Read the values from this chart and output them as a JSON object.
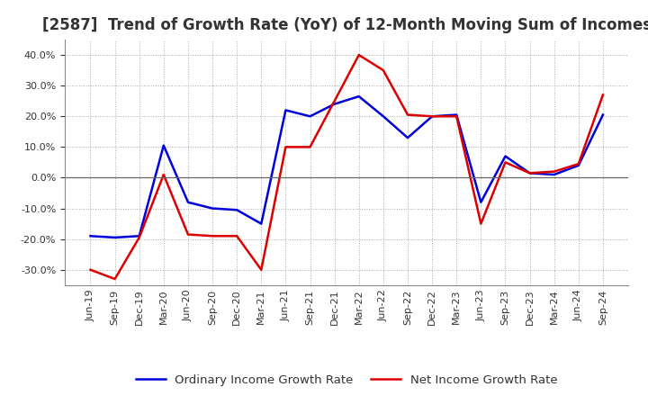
{
  "title": "[2587]  Trend of Growth Rate (YoY) of 12-Month Moving Sum of Incomes",
  "x_labels": [
    "Jun-19",
    "Sep-19",
    "Dec-19",
    "Mar-20",
    "Jun-20",
    "Sep-20",
    "Dec-20",
    "Mar-21",
    "Jun-21",
    "Sep-21",
    "Dec-21",
    "Mar-22",
    "Jun-22",
    "Sep-22",
    "Dec-22",
    "Mar-23",
    "Jun-23",
    "Sep-23",
    "Dec-23",
    "Mar-24",
    "Jun-24",
    "Sep-24"
  ],
  "ordinary_income": [
    -19.0,
    -19.5,
    -19.0,
    10.5,
    -8.0,
    -10.0,
    -10.5,
    -15.0,
    22.0,
    20.0,
    24.0,
    26.5,
    20.0,
    13.0,
    20.0,
    20.5,
    -8.0,
    7.0,
    1.5,
    1.0,
    4.0,
    20.5
  ],
  "net_income": [
    -30.0,
    -33.0,
    -19.5,
    1.0,
    -18.5,
    -19.0,
    -19.0,
    -30.0,
    10.0,
    10.0,
    25.0,
    40.0,
    35.0,
    20.5,
    20.0,
    20.0,
    -15.0,
    5.0,
    1.5,
    2.0,
    4.5,
    27.0
  ],
  "ordinary_color": "#0000dd",
  "net_color": "#dd0000",
  "ylim": [
    -35,
    45
  ],
  "yticks": [
    -30.0,
    -20.0,
    -10.0,
    0.0,
    10.0,
    20.0,
    30.0,
    40.0
  ],
  "background_color": "#ffffff",
  "plot_bg_color": "#ffffff",
  "grid_color": "#aaaaaa",
  "title_color": "#333333",
  "legend_ordinary": "Ordinary Income Growth Rate",
  "legend_net": "Net Income Growth Rate",
  "title_fontsize": 12,
  "tick_fontsize": 8,
  "legend_fontsize": 9.5,
  "linewidth": 1.8
}
